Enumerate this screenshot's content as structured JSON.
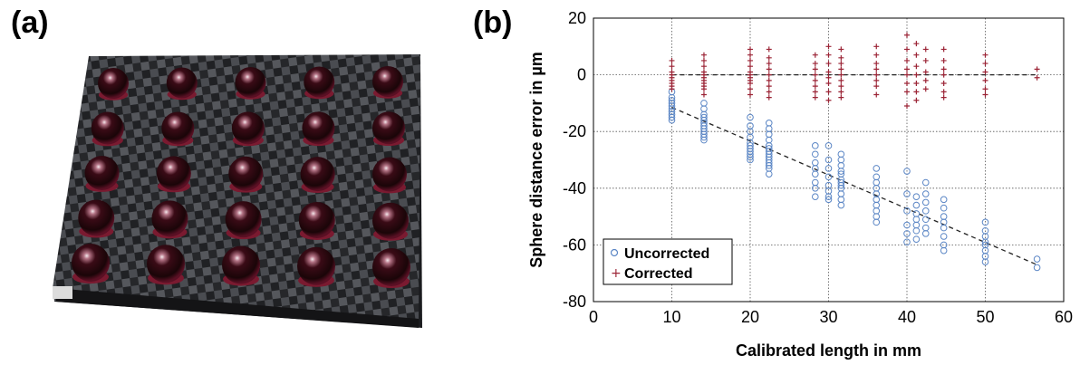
{
  "panels": {
    "a": {
      "label": "(a)"
    },
    "b": {
      "label": "(b)"
    }
  },
  "chart_data": {
    "type": "scatter",
    "xlabel": "Calibrated length in mm",
    "ylabel": "Sphere distance error in µm",
    "xlim": [
      0,
      60
    ],
    "ylim": [
      -80,
      20
    ],
    "xticks": [
      0,
      10,
      20,
      30,
      40,
      50,
      60
    ],
    "yticks": [
      -80,
      -60,
      -40,
      -20,
      0,
      20
    ],
    "grid": true,
    "legend_placement": "bottom-left",
    "series": [
      {
        "name": "Uncorrected",
        "marker": "open-circle",
        "color": "#5b86c5",
        "points": [
          [
            10,
            -6
          ],
          [
            10,
            -8
          ],
          [
            10,
            -9
          ],
          [
            10,
            -10
          ],
          [
            10,
            -11
          ],
          [
            10,
            -12
          ],
          [
            10,
            -13
          ],
          [
            10,
            -14
          ],
          [
            10,
            -15
          ],
          [
            10,
            -16
          ],
          [
            14.1,
            -10
          ],
          [
            14.1,
            -12
          ],
          [
            14.1,
            -14
          ],
          [
            14.1,
            -15
          ],
          [
            14.1,
            -16
          ],
          [
            14.1,
            -17
          ],
          [
            14.1,
            -18
          ],
          [
            14.1,
            -19
          ],
          [
            14.1,
            -20
          ],
          [
            14.1,
            -21
          ],
          [
            14.1,
            -22
          ],
          [
            14.1,
            -23
          ],
          [
            20,
            -15
          ],
          [
            20,
            -18
          ],
          [
            20,
            -20
          ],
          [
            20,
            -22
          ],
          [
            20,
            -24
          ],
          [
            20,
            -25
          ],
          [
            20,
            -26
          ],
          [
            20,
            -27
          ],
          [
            20,
            -28
          ],
          [
            20,
            -29
          ],
          [
            20,
            -30
          ],
          [
            22.4,
            -17
          ],
          [
            22.4,
            -19
          ],
          [
            22.4,
            -21
          ],
          [
            22.4,
            -23
          ],
          [
            22.4,
            -25
          ],
          [
            22.4,
            -26
          ],
          [
            22.4,
            -27
          ],
          [
            22.4,
            -28
          ],
          [
            22.4,
            -29
          ],
          [
            22.4,
            -30
          ],
          [
            22.4,
            -31
          ],
          [
            22.4,
            -32
          ],
          [
            22.4,
            -33
          ],
          [
            22.4,
            -35
          ],
          [
            28.3,
            -25
          ],
          [
            28.3,
            -28
          ],
          [
            28.3,
            -31
          ],
          [
            28.3,
            -33
          ],
          [
            28.3,
            -35
          ],
          [
            28.3,
            -38
          ],
          [
            28.3,
            -40
          ],
          [
            28.3,
            -43
          ],
          [
            30,
            -25
          ],
          [
            30,
            -30
          ],
          [
            30,
            -33
          ],
          [
            30,
            -36
          ],
          [
            30,
            -39
          ],
          [
            30,
            -41
          ],
          [
            30,
            -43
          ],
          [
            30,
            -44
          ],
          [
            31.6,
            -28
          ],
          [
            31.6,
            -30
          ],
          [
            31.6,
            -32
          ],
          [
            31.6,
            -34
          ],
          [
            31.6,
            -35
          ],
          [
            31.6,
            -37
          ],
          [
            31.6,
            -38
          ],
          [
            31.6,
            -39
          ],
          [
            31.6,
            -40
          ],
          [
            31.6,
            -42
          ],
          [
            31.6,
            -44
          ],
          [
            31.6,
            -46
          ],
          [
            36.1,
            -33
          ],
          [
            36.1,
            -36
          ],
          [
            36.1,
            -38
          ],
          [
            36.1,
            -40
          ],
          [
            36.1,
            -42
          ],
          [
            36.1,
            -44
          ],
          [
            36.1,
            -46
          ],
          [
            36.1,
            -48
          ],
          [
            36.1,
            -50
          ],
          [
            36.1,
            -52
          ],
          [
            40,
            -34
          ],
          [
            40,
            -42
          ],
          [
            40,
            -48
          ],
          [
            40,
            -53
          ],
          [
            40,
            -56
          ],
          [
            40,
            -59
          ],
          [
            41.2,
            -43
          ],
          [
            41.2,
            -46
          ],
          [
            41.2,
            -49
          ],
          [
            41.2,
            -51
          ],
          [
            41.2,
            -53
          ],
          [
            41.2,
            -55
          ],
          [
            41.2,
            -58
          ],
          [
            42.4,
            -38
          ],
          [
            42.4,
            -42
          ],
          [
            42.4,
            -45
          ],
          [
            42.4,
            -48
          ],
          [
            42.4,
            -51
          ],
          [
            42.4,
            -54
          ],
          [
            42.4,
            -56
          ],
          [
            44.7,
            -44
          ],
          [
            44.7,
            -47
          ],
          [
            44.7,
            -50
          ],
          [
            44.7,
            -52
          ],
          [
            44.7,
            -54
          ],
          [
            44.7,
            -57
          ],
          [
            44.7,
            -60
          ],
          [
            44.7,
            -62
          ],
          [
            50,
            -52
          ],
          [
            50,
            -55
          ],
          [
            50,
            -57
          ],
          [
            50,
            -59
          ],
          [
            50,
            -60
          ],
          [
            50,
            -62
          ],
          [
            50,
            -64
          ],
          [
            50,
            -66
          ],
          [
            56.6,
            -65
          ],
          [
            56.6,
            -68
          ]
        ]
      },
      {
        "name": "Corrected",
        "marker": "plus",
        "color": "#9b2335",
        "points": [
          [
            10,
            5
          ],
          [
            10,
            3
          ],
          [
            10,
            1
          ],
          [
            10,
            0
          ],
          [
            10,
            -1
          ],
          [
            10,
            -2
          ],
          [
            10,
            -3
          ],
          [
            10,
            -4
          ],
          [
            10,
            -5
          ],
          [
            14.1,
            7
          ],
          [
            14.1,
            5
          ],
          [
            14.1,
            3
          ],
          [
            14.1,
            1
          ],
          [
            14.1,
            0
          ],
          [
            14.1,
            -1
          ],
          [
            14.1,
            -2
          ],
          [
            14.1,
            -3
          ],
          [
            14.1,
            -4
          ],
          [
            14.1,
            -5
          ],
          [
            14.1,
            -7
          ],
          [
            20,
            9
          ],
          [
            20,
            7
          ],
          [
            20,
            5
          ],
          [
            20,
            3
          ],
          [
            20,
            1
          ],
          [
            20,
            0
          ],
          [
            20,
            -1
          ],
          [
            20,
            -2
          ],
          [
            20,
            -3
          ],
          [
            20,
            -5
          ],
          [
            20,
            -7
          ],
          [
            22.4,
            9
          ],
          [
            22.4,
            6
          ],
          [
            22.4,
            4
          ],
          [
            22.4,
            2
          ],
          [
            22.4,
            0
          ],
          [
            22.4,
            -2
          ],
          [
            22.4,
            -4
          ],
          [
            22.4,
            -6
          ],
          [
            22.4,
            -8
          ],
          [
            28.3,
            7
          ],
          [
            28.3,
            4
          ],
          [
            28.3,
            2
          ],
          [
            28.3,
            0
          ],
          [
            28.3,
            -2
          ],
          [
            28.3,
            -4
          ],
          [
            28.3,
            -6
          ],
          [
            28.3,
            -8
          ],
          [
            30,
            10
          ],
          [
            30,
            7
          ],
          [
            30,
            4
          ],
          [
            30,
            1
          ],
          [
            30,
            -1
          ],
          [
            30,
            -3
          ],
          [
            30,
            -6
          ],
          [
            30,
            -9
          ],
          [
            31.6,
            9
          ],
          [
            31.6,
            6
          ],
          [
            31.6,
            4
          ],
          [
            31.6,
            2
          ],
          [
            31.6,
            0
          ],
          [
            31.6,
            -2
          ],
          [
            31.6,
            -4
          ],
          [
            31.6,
            -6
          ],
          [
            31.6,
            -8
          ],
          [
            36.1,
            10
          ],
          [
            36.1,
            7
          ],
          [
            36.1,
            4
          ],
          [
            36.1,
            2
          ],
          [
            36.1,
            0
          ],
          [
            36.1,
            -2
          ],
          [
            36.1,
            -4
          ],
          [
            36.1,
            -7
          ],
          [
            40,
            14
          ],
          [
            40,
            9
          ],
          [
            40,
            5
          ],
          [
            40,
            2
          ],
          [
            40,
            0
          ],
          [
            40,
            -3
          ],
          [
            40,
            -6
          ],
          [
            40,
            -11
          ],
          [
            41.2,
            11
          ],
          [
            41.2,
            7
          ],
          [
            41.2,
            3
          ],
          [
            41.2,
            0
          ],
          [
            41.2,
            -3
          ],
          [
            41.2,
            -6
          ],
          [
            41.2,
            -9
          ],
          [
            42.4,
            9
          ],
          [
            42.4,
            5
          ],
          [
            42.4,
            1
          ],
          [
            42.4,
            -2
          ],
          [
            42.4,
            -5
          ],
          [
            44.7,
            9
          ],
          [
            44.7,
            5
          ],
          [
            44.7,
            2
          ],
          [
            44.7,
            0
          ],
          [
            44.7,
            -3
          ],
          [
            44.7,
            -6
          ],
          [
            44.7,
            -8
          ],
          [
            50,
            7
          ],
          [
            50,
            4
          ],
          [
            50,
            1
          ],
          [
            50,
            -2
          ],
          [
            50,
            -5
          ],
          [
            50,
            -7
          ],
          [
            56.6,
            2
          ],
          [
            56.6,
            -1
          ]
        ]
      }
    ],
    "trendlines": [
      {
        "series": "Uncorrected",
        "style": "dashed",
        "color": "#222222",
        "from": [
          10,
          -11.5
        ],
        "to": [
          56.6,
          -67
        ]
      },
      {
        "series": "Corrected",
        "style": "dashed",
        "color": "#222222",
        "from": [
          10,
          0
        ],
        "to": [
          56.6,
          0
        ]
      }
    ]
  }
}
